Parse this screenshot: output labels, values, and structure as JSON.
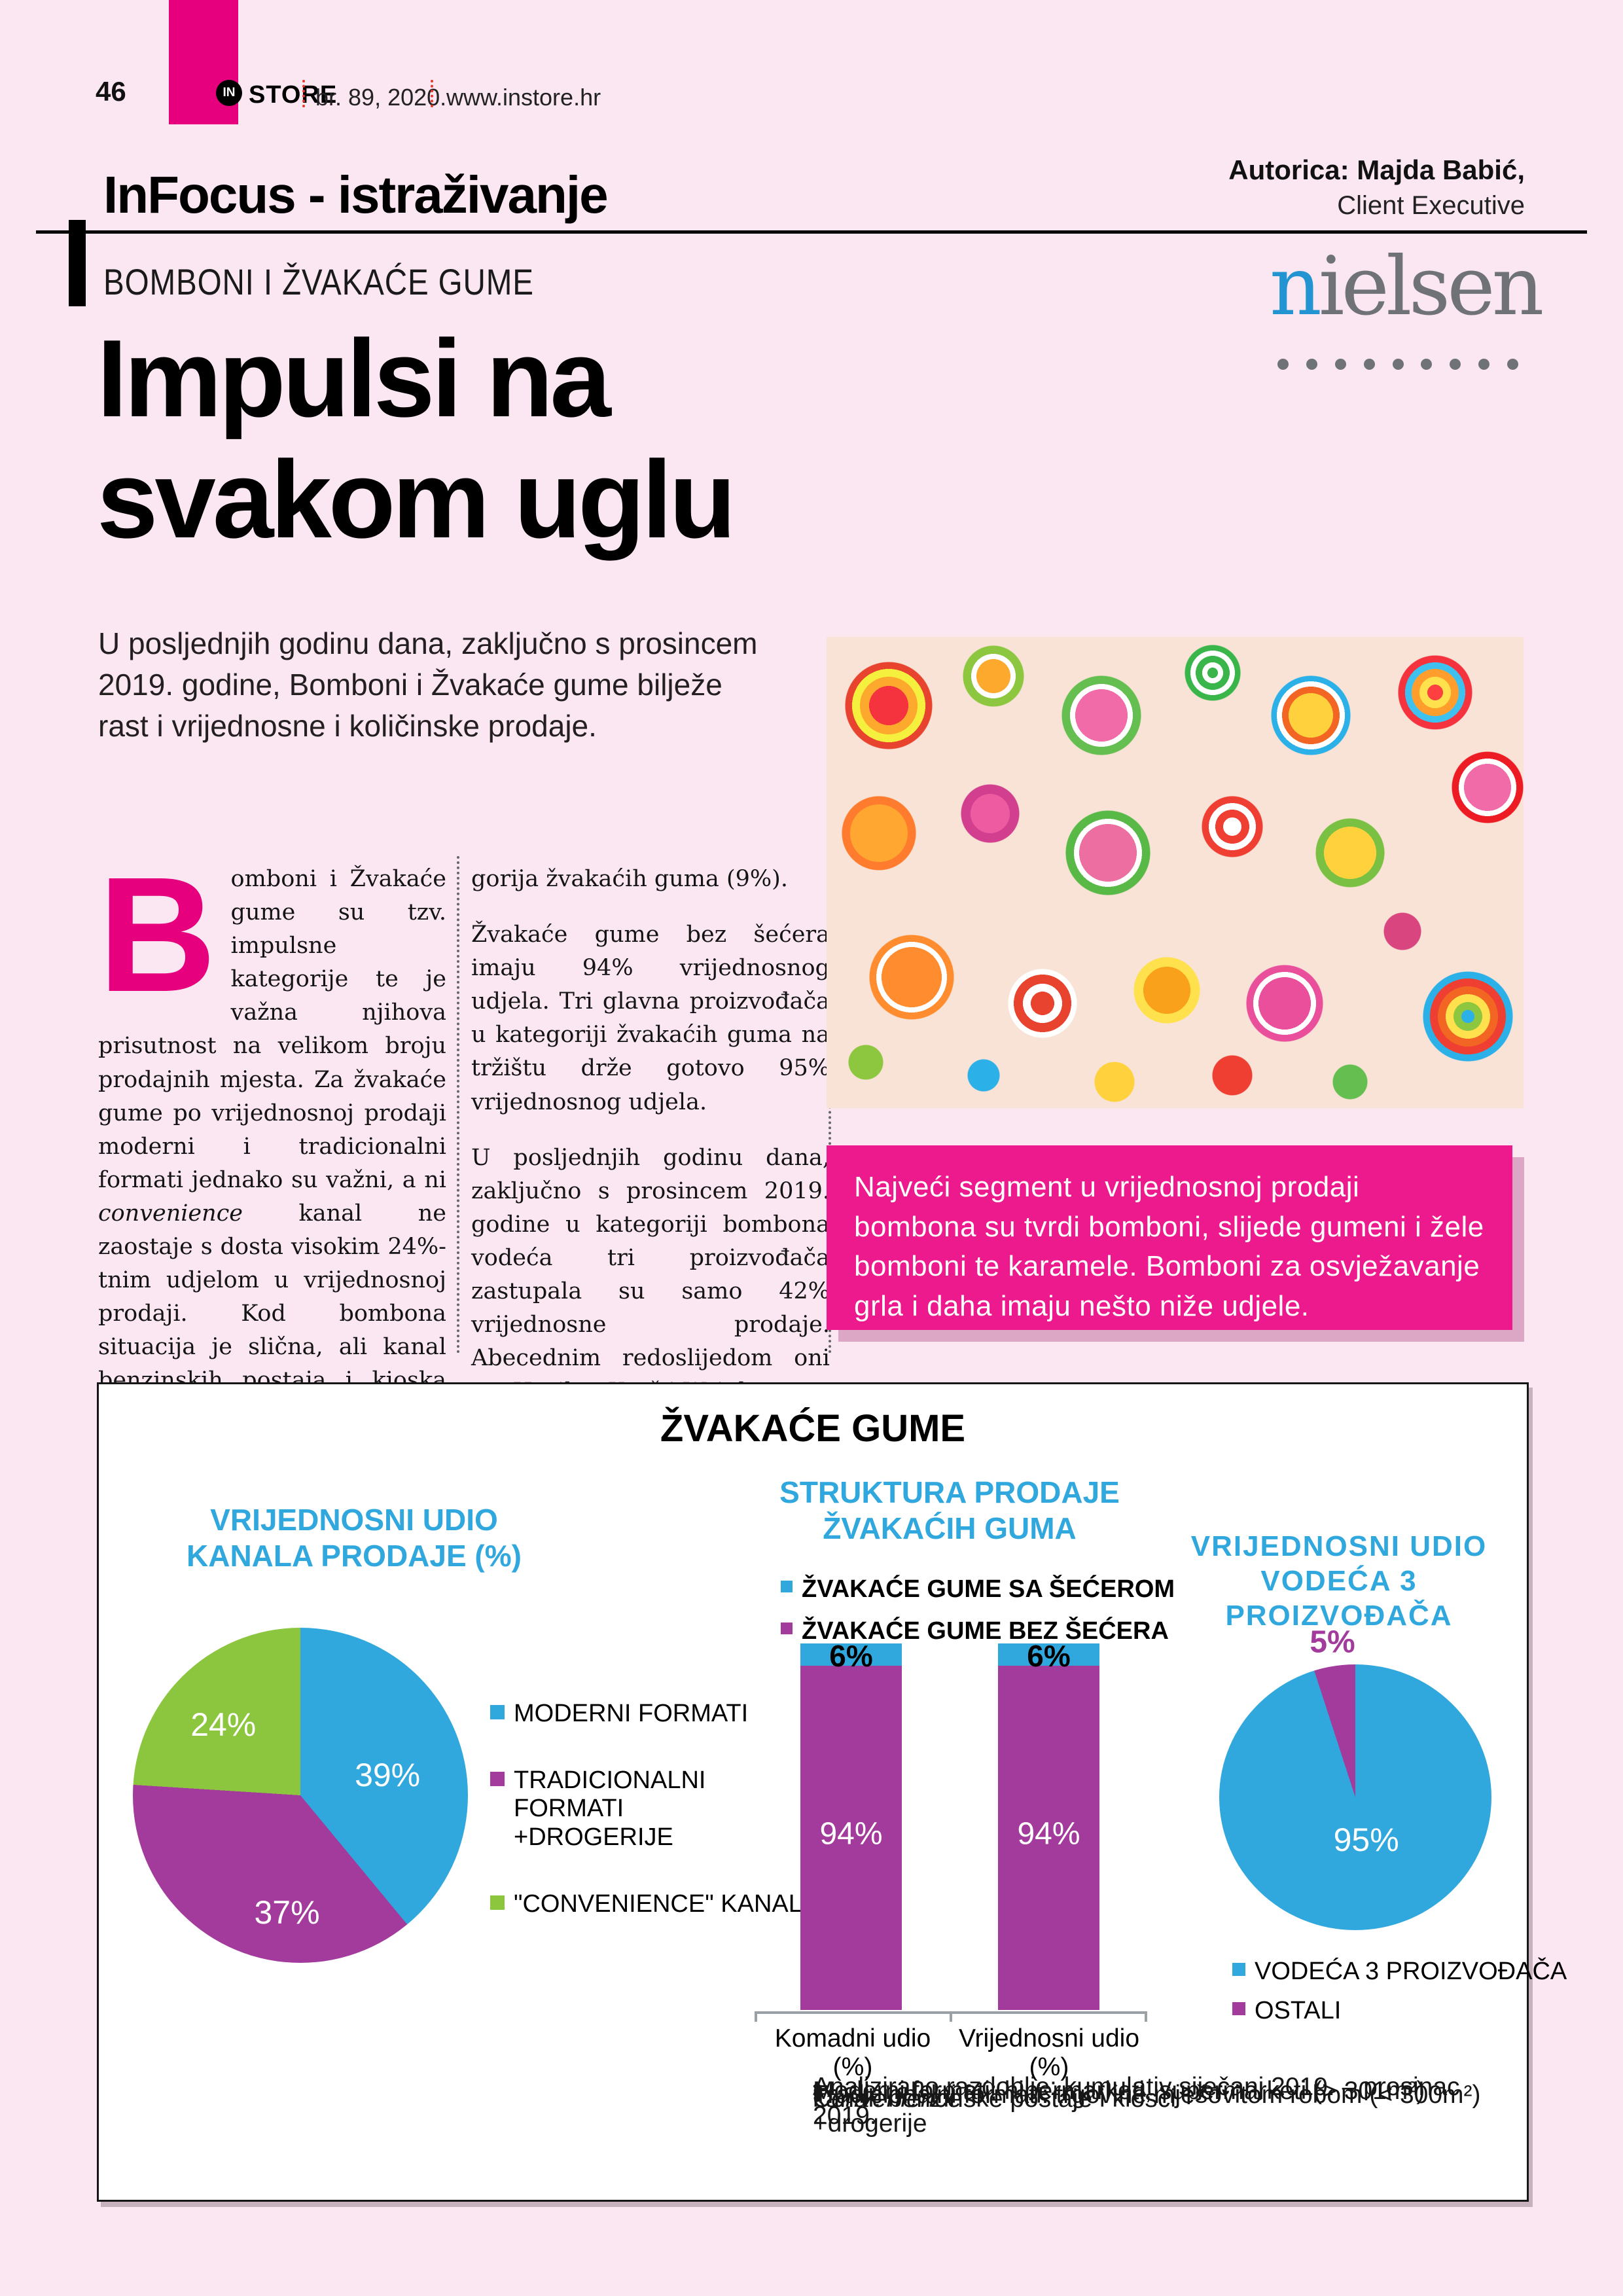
{
  "colors": {
    "page_bg": "#fbe7f1",
    "magenta": "#e6007e",
    "highlight_box_pink": "#ec1a8d",
    "chart_blue": "#31a8dd",
    "chart_purple": "#a33b9c",
    "chart_green": "#8cc63f",
    "nielsen_gray": "#6f7377",
    "nielsen_blue": "#2394d2",
    "divider_red": "#e23b2e"
  },
  "header": {
    "page_number": "46",
    "logo_in": "IN",
    "logo_store": "STORE",
    "issue": "br. 89, 2020.",
    "website": "www.instore.hr",
    "section_title": "InFocus - istraživanje",
    "author_bold": "Autorica: Majda Babić,",
    "author_role": "Client Executive"
  },
  "kicker": "BOMBONI I ŽVAKAĆE GUME",
  "nielsen": {
    "first": "n",
    "rest": "ielsen"
  },
  "headline": {
    "line1": "Impulsi na",
    "line2": "svakom uglu"
  },
  "intro": "U posljednjih godinu dana, zaključno s prosincem 2019. godine, Bomboni i Žvakaće gume bilježe rast i vrijednosne i količinske prodaje.",
  "article": {
    "dropcap": "B",
    "col1_before_italic": "omboni i Žvakaće gume su tzv. impulsne kategorije te je važna njihova prisutnost na velikom broju prodajnih mjesta. Za žvakaće gume po vrijednosnoj prodaji moderni i tradicionalni formati jednako su važni, a ni ",
    "col1_italic": "convenience",
    "col1_after_italic": " kanal ne zaostaje s dosta visokim 24%-tnim udjelom u vrijednosnoj prodaji. Kod bombona situacija je slična, ali kanal benzinskih postaja i kioska nešto je manje važan nego kod kate-",
    "col2_p1": "gorija žvakaćih guma (9%).",
    "col2_p2": "Žvakaće gume bez šećera imaju 94% vrijednosnog udjela. Tri glavna proizvođača u kategoriji žvakaćih guma na tržištu drže gotovo 95% vrijednosnog udjela.",
    "col2_p3": "U posljednjih godinu dana, zaključno s prosincem 2019. godine u kategoriji bombona vodeća tri proizvođača zastupala su samo 42% vrijednosne prodaje. Abecednim redoslijedom oni su: Haribo, Kraš i Wrigley."
  },
  "highlight_box": "Najveći segment u vrijednosnoj prodaji bombona su tvrdi bomboni, slijede gumeni i žele bomboni te karamele. Bomboni za osvježavanje grla i daha imaju nešto niže udjele.",
  "panel": {
    "title": "ŽVAKAĆE GUME",
    "footnotes": [
      {
        "bullet": "•",
        "italic": "",
        "text": "Analizirano razdoblje: kumulativ siječanj 2019. – prosinac 2019."
      },
      {
        "bullet": "•",
        "italic": "",
        "text": "Moderni formati: hipermarketi, supermarketi (> 301m²)"
      },
      {
        "bullet": "•",
        "italic": "",
        "text": "Tradicionalni formati: trgovine mješovitom robom (< 300m²) +drogerije"
      },
      {
        "bullet": "•",
        "italic": "Convenience",
        "text": " kanal: benzinske postaje i kiosci"
      }
    ]
  },
  "chart_data": [
    {
      "type": "pie",
      "title_lines": [
        "VRIJEDNOSNI UDIO",
        "KANALA PRODAJE (%)"
      ],
      "slices": [
        {
          "label": "MODERNI FORMATI",
          "value": 39,
          "pct_label": "39%",
          "color": "#31a8dd"
        },
        {
          "label": "TRADICIONALNI FORMATI +DROGERIJE",
          "value": 37,
          "pct_label": "37%",
          "color": "#a33b9c"
        },
        {
          "label": "\"CONVENIENCE\" KANALI",
          "value": 24,
          "pct_label": "24%",
          "color": "#8cc63f"
        }
      ],
      "legend_position": "right",
      "start_angle_deg": 0,
      "direction": "clockwise"
    },
    {
      "type": "stacked-bar",
      "title_lines": [
        "STRUKTURA PRODAJE",
        "ŽVAKAĆIH GUMA"
      ],
      "legend": [
        {
          "label": "ŽVAKAĆE GUME SA ŠEĆEROM",
          "color": "#31a8dd"
        },
        {
          "label": "ŽVAKAĆE GUME BEZ ŠEĆERA",
          "color": "#a33b9c"
        }
      ],
      "categories": [
        "Komadni udio (%)",
        "Vrijednosni udio (%)"
      ],
      "series": [
        {
          "name": "ŽVAKAĆE GUME BEZ ŠEĆERA",
          "color": "#a33b9c",
          "values": [
            94,
            94
          ],
          "pct_labels": [
            "94%",
            "94%"
          ]
        },
        {
          "name": "ŽVAKAĆE GUME SA ŠEĆEROM",
          "color": "#31a8dd",
          "values": [
            6,
            6
          ],
          "pct_labels": [
            "6%",
            "6%"
          ]
        }
      ],
      "ylim": [
        0,
        100
      ]
    },
    {
      "type": "pie",
      "title_lines": [
        "VRIJEDNOSNI UDIO",
        "VODEĆA 3",
        "PROIZVOĐAČA"
      ],
      "slices": [
        {
          "label": "VODEĆA 3 PROIZVOĐAČA",
          "value": 95,
          "pct_label": "95%",
          "color": "#31a8dd"
        },
        {
          "label": "OSTALI",
          "value": 5,
          "pct_label": "5%",
          "color": "#a33b9c"
        }
      ],
      "legend_position": "bottom",
      "start_angle_deg": 0,
      "direction": "clockwise"
    }
  ]
}
